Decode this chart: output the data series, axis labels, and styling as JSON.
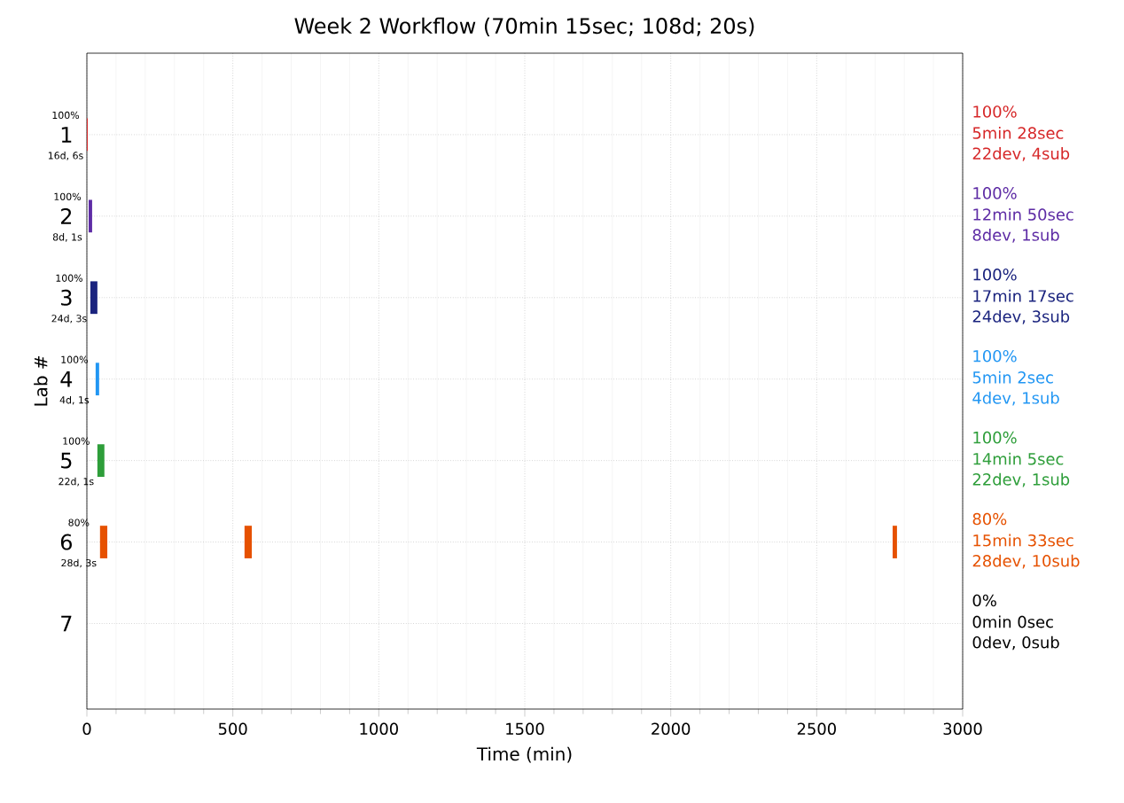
{
  "chart_data": {
    "type": "bar",
    "orientation": "horizontal",
    "title": "Week 2 Workflow (70min 15sec; 108d; 20s)",
    "xlabel": "Time (min)",
    "ylabel": "Lab #",
    "categories": [
      "1",
      "2",
      "3",
      "4",
      "5",
      "6",
      "7"
    ],
    "xlim": [
      0,
      3000
    ],
    "xticks": [
      0,
      500,
      1000,
      1500,
      2000,
      2500,
      3000
    ],
    "grid": true,
    "series": [
      {
        "color": "#d62728",
        "base": [
          0,
          null,
          null,
          null,
          null,
          null,
          null
        ],
        "values": [
          3,
          null,
          null,
          null,
          null,
          null,
          null
        ]
      },
      {
        "color": "#5e2ca5",
        "base": [
          null,
          6,
          null,
          null,
          null,
          null,
          null
        ],
        "values": [
          null,
          12,
          null,
          null,
          null,
          null,
          null
        ]
      },
      {
        "color": "#1a237e",
        "base": [
          null,
          null,
          12,
          null,
          null,
          null,
          null
        ],
        "values": [
          null,
          null,
          24,
          null,
          null,
          null,
          null
        ]
      },
      {
        "color": "#2196f3",
        "base": [
          null,
          null,
          null,
          30,
          null,
          null,
          null
        ],
        "values": [
          null,
          null,
          null,
          12,
          null,
          null,
          null
        ]
      },
      {
        "color": "#2e9e3a",
        "base": [
          null,
          null,
          null,
          null,
          36,
          null,
          null
        ],
        "values": [
          null,
          null,
          null,
          null,
          24,
          null,
          null
        ]
      },
      {
        "color": "#e65100",
        "base": [
          null,
          null,
          null,
          null,
          null,
          45,
          null
        ],
        "values": [
          null,
          null,
          null,
          null,
          null,
          25,
          null
        ]
      },
      {
        "color": "#e65100",
        "base": [
          null,
          null,
          null,
          null,
          null,
          540,
          null
        ],
        "values": [
          null,
          null,
          null,
          null,
          null,
          25,
          null
        ]
      },
      {
        "color": "#e65100",
        "base": [
          null,
          null,
          null,
          null,
          null,
          2760,
          null
        ],
        "values": [
          null,
          null,
          null,
          null,
          null,
          15,
          null
        ]
      }
    ],
    "annotations": [
      "100%",
      "5min 28sec",
      "22dev, 4sub",
      "100%",
      "12min 50sec",
      "8dev, 1sub",
      "100%",
      "17min 17sec",
      "24dev, 3sub",
      "100%",
      "5min 2sec",
      "4dev, 1sub",
      "100%",
      "14min 5sec",
      "22dev, 1sub",
      "80%",
      "15min 33sec",
      "28dev, 10sub",
      "0%",
      "0min 0sec",
      "0dev, 0sub",
      {
        "text": "100%",
        "x": 0,
        "y": "1"
      },
      {
        "text": "16d, 6s",
        "x": 0,
        "y": "1"
      },
      {
        "text": "100%",
        "x": 6,
        "y": "2"
      },
      {
        "text": "8d, 1s",
        "x": 6,
        "y": "2"
      },
      {
        "text": "100%",
        "x": 12,
        "y": "3"
      },
      {
        "text": "24d, 3s",
        "x": 12,
        "y": "3"
      },
      {
        "text": "100%",
        "x": 30,
        "y": "4"
      },
      {
        "text": "4d, 1s",
        "x": 30,
        "y": "4"
      },
      {
        "text": "100%",
        "x": 36,
        "y": "5"
      },
      {
        "text": "22d, 1s",
        "x": 36,
        "y": "5"
      },
      {
        "text": "80%",
        "x": 45,
        "y": "6"
      },
      {
        "text": "28d, 3s",
        "x": 45,
        "y": "6"
      }
    ]
  }
}
